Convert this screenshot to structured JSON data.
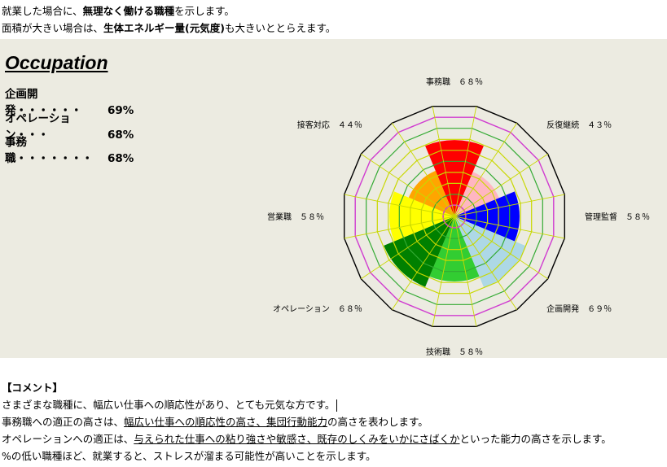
{
  "intro": {
    "line1_a": "就業した場合に、",
    "line1_b": "無理なく働ける職種",
    "line1_c": "を示します。",
    "line2_a": "面積が大きい場合は、",
    "line2_b": "生体エネルギー量(元気度)",
    "line2_c": "も大きいととらえます。"
  },
  "occupation": {
    "title": "Occupation",
    "rows": [
      {
        "label": "企画開発・・・・・・",
        "value": "69%"
      },
      {
        "label": "オペレーション・・・",
        "value": "68%"
      },
      {
        "label": "事務職・・・・・・・",
        "value": "68%"
      }
    ]
  },
  "chart_data": {
    "type": "radar",
    "max": 100,
    "ring_step": 10,
    "categories": [
      {
        "label": "事務職　６８％",
        "value": 68,
        "color": "#ff0000"
      },
      {
        "label": "反復継続　４３％",
        "value": 43,
        "color": "#ffb6c1"
      },
      {
        "label": "管理監督　５８％",
        "value": 58,
        "color": "#0000ff"
      },
      {
        "label": "企画開発　６９％",
        "value": 69,
        "color": "#add8e6"
      },
      {
        "label": "技術職　５８％",
        "value": 58,
        "color": "#32cd32"
      },
      {
        "label": "オペレーション　６８％",
        "value": 68,
        "color": "#008000"
      },
      {
        "label": "営業職　５８％",
        "value": 58,
        "color": "#ffff00"
      },
      {
        "label": "接客対応　４４％",
        "value": 44,
        "color": "#ffa500"
      }
    ],
    "colors": {
      "ring": "#c8d800",
      "ring_alt": "#33aa33",
      "highlight_ring": "#d03cd0",
      "outer": "#000000"
    }
  },
  "comment": {
    "heading": "【コメント】",
    "line1": "さまざまな職種に、幅広い仕事への順応性があり、とても元気な方です。",
    "line2_a": "事務職への適正の高さは、",
    "line2_b": "幅広い仕事への順応性の高さ、集団行動能力",
    "line2_c": "の高さを表わします。",
    "line3_a": "オペレーションへの適正は、",
    "line3_b": "与えられた仕事への粘り強さや敏感さ、既存のしくみをいかにさばくか",
    "line3_c": "といった能力の高さを示します。",
    "line4": "%の低い職種ほど、就業すると、ストレスが溜まる可能性が高いことを示します。"
  }
}
